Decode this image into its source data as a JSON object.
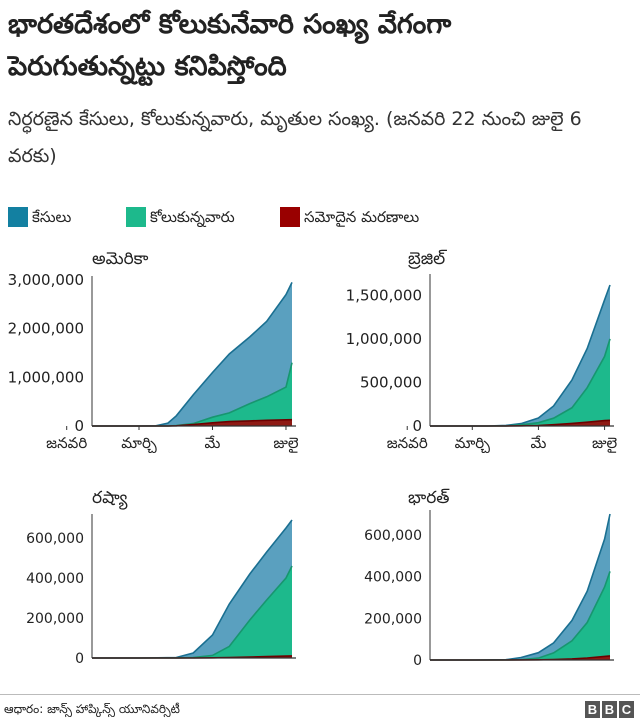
{
  "header": {
    "title": "భారతదేశంలో కోలుకునేవారి సంఖ్య వేగంగా పెరుగుతున్నట్టు కనిపిస్తోంది",
    "subtitle": "నిర్ధరణైన కేసులు, కోలుకున్నవారు, మృతుల సంఖ్య. (జనవరి 22 నుంచి జులై 6 వరకు)"
  },
  "legend": {
    "items": [
      {
        "label": "కేసులు",
        "color": "#1380A1"
      },
      {
        "label": "కోలుకున్నవారు",
        "color": "#1DB98C"
      },
      {
        "label": "సమోదైన మరణాలు",
        "color": "#990000"
      }
    ]
  },
  "chart_data": [
    {
      "type": "area",
      "title": "అమెరికా",
      "xlabel": "",
      "ylabel": "",
      "x_tick_labels": [
        "జనవరి",
        "మార్చి",
        "మే",
        "జులై"
      ],
      "y_ticks": [
        0,
        1000000,
        2000000,
        3000000
      ],
      "y_tick_labels": [
        "0",
        "1,000,000",
        "2,000,000",
        "3,000,000"
      ],
      "ylim": [
        0,
        3000000
      ],
      "x": [
        "2020-01-22",
        "2020-02-15",
        "2020-03-01",
        "2020-03-15",
        "2020-03-25",
        "2020-04-01",
        "2020-04-15",
        "2020-05-01",
        "2020-05-15",
        "2020-06-01",
        "2020-06-15",
        "2020-07-01",
        "2020-07-06"
      ],
      "series": [
        {
          "name": "కేసులు",
          "values": [
            0,
            0,
            0,
            5000,
            60000,
            210000,
            640000,
            1100000,
            1480000,
            1830000,
            2150000,
            2700000,
            2950000
          ]
        },
        {
          "name": "కోలుకున్నవారు",
          "values": [
            0,
            0,
            0,
            0,
            0,
            10000,
            50000,
            180000,
            270000,
            460000,
            600000,
            800000,
            1300000
          ]
        },
        {
          "name": "సమోదైన మరణాలు",
          "values": [
            0,
            0,
            0,
            0,
            1000,
            5000,
            30000,
            65000,
            90000,
            105000,
            118000,
            128000,
            130000
          ]
        }
      ],
      "legend": "top-left",
      "grid": false
    },
    {
      "type": "area",
      "title": "బ్రెజిల్",
      "xlabel": "",
      "ylabel": "",
      "x_tick_labels": [
        "జనవరి",
        "మార్చి",
        "మే",
        "జులై"
      ],
      "y_ticks": [
        0,
        500000,
        1000000,
        1500000
      ],
      "y_tick_labels": [
        "0",
        "500,000",
        "1,000,000",
        "1,500,000"
      ],
      "ylim": [
        0,
        1700000
      ],
      "x": [
        "2020-01-22",
        "2020-02-15",
        "2020-03-01",
        "2020-03-15",
        "2020-04-01",
        "2020-04-15",
        "2020-05-01",
        "2020-05-15",
        "2020-06-01",
        "2020-06-15",
        "2020-07-01",
        "2020-07-06"
      ],
      "series": [
        {
          "name": "కేసులు",
          "values": [
            0,
            0,
            0,
            200,
            7000,
            28000,
            92000,
            230000,
            530000,
            890000,
            1450000,
            1620000
          ]
        },
        {
          "name": "కోలుకున్నవారు",
          "values": [
            0,
            0,
            0,
            0,
            100,
            14000,
            38000,
            90000,
            210000,
            440000,
            800000,
            1000000
          ]
        },
        {
          "name": "సమోదైన మరణాలు",
          "values": [
            0,
            0,
            0,
            0,
            200,
            1900,
            6300,
            15000,
            30000,
            44000,
            62000,
            65000
          ]
        }
      ],
      "legend": "top-left",
      "grid": false
    },
    {
      "type": "area",
      "title": "రష్యా",
      "xlabel": "",
      "ylabel": "",
      "x_tick_labels": [],
      "y_ticks": [
        0,
        200000,
        400000,
        600000
      ],
      "y_tick_labels": [
        "0",
        "200,000",
        "400,000",
        "600,000"
      ],
      "ylim": [
        0,
        700000
      ],
      "x": [
        "2020-01-22",
        "2020-03-01",
        "2020-04-01",
        "2020-04-15",
        "2020-05-01",
        "2020-05-15",
        "2020-06-01",
        "2020-06-15",
        "2020-07-01",
        "2020-07-06"
      ],
      "series": [
        {
          "name": "కేసులు",
          "values": [
            0,
            0,
            2700,
            25000,
            115000,
            270000,
            420000,
            530000,
            650000,
            690000
          ]
        },
        {
          "name": "కోలుకున్నవారు",
          "values": [
            0,
            0,
            100,
            2000,
            13000,
            58000,
            190000,
            290000,
            400000,
            460000
          ]
        },
        {
          "name": "సమోదైన మరణాలు",
          "values": [
            0,
            0,
            0,
            200,
            1100,
            2600,
            4900,
            6900,
            9300,
            10500
          ]
        }
      ],
      "legend": "top-left",
      "grid": false
    },
    {
      "type": "area",
      "title": "భారత్",
      "xlabel": "",
      "ylabel": "",
      "x_tick_labels": [],
      "y_ticks": [
        0,
        200000,
        400000,
        600000
      ],
      "y_tick_labels": [
        "0",
        "200,000",
        "400,000",
        "600,000"
      ],
      "ylim": [
        0,
        700000
      ],
      "x": [
        "2020-01-22",
        "2020-03-01",
        "2020-04-01",
        "2020-04-15",
        "2020-05-01",
        "2020-05-15",
        "2020-06-01",
        "2020-06-15",
        "2020-07-01",
        "2020-07-06"
      ],
      "series": [
        {
          "name": "కేసులు",
          "values": [
            0,
            0,
            1600,
            12000,
            35000,
            82000,
            190000,
            330000,
            580000,
            700000
          ]
        },
        {
          "name": "కోలుకున్నవారు",
          "values": [
            0,
            0,
            100,
            1500,
            9000,
            34000,
            92000,
            180000,
            350000,
            425000
          ]
        },
        {
          "name": "సమోదైన మరణాలు",
          "values": [
            0,
            0,
            50,
            400,
            1100,
            2600,
            5400,
            9500,
            17400,
            19700
          ]
        }
      ],
      "legend": "top-left",
      "grid": false
    }
  ],
  "footer": {
    "source": "ఆధారం: జాన్స్ హాప్కిన్స్ యూనివర్సిటీ",
    "logo_letters": [
      "B",
      "B",
      "C"
    ]
  }
}
